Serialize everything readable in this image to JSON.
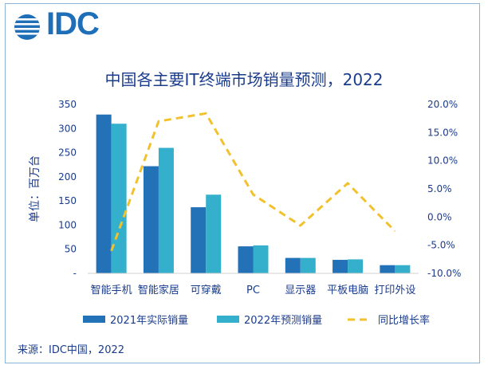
{
  "brand": {
    "logo_text": "IDC",
    "logo_icon": "globe-icon",
    "color": "#1f6fb8"
  },
  "title": "中国各主要IT终端市场销量预测，2022",
  "source": "来源：IDC中国，2022",
  "chart_data": {
    "type": "bar",
    "title": "中国各主要IT终端市场销量预测，2022",
    "ylabel": "单位：百万台",
    "categories": [
      "智能手机",
      "智能家居",
      "可穿戴",
      "PC",
      "显示器",
      "平板电脑",
      "打印外设"
    ],
    "series": [
      {
        "name": "2021年实际销量",
        "kind": "bar",
        "color": "#2372b8",
        "values": [
          329,
          222,
          137,
          56,
          32,
          28,
          17
        ]
      },
      {
        "name": "2022年预测销量",
        "kind": "bar",
        "color": "#35b0cc",
        "values": [
          310,
          260,
          163,
          58,
          32,
          29,
          17
        ]
      },
      {
        "name": "同比增长率",
        "kind": "line",
        "axis": "right",
        "color": "#f2c12e",
        "values": [
          -6.0,
          17.0,
          18.4,
          4.0,
          -1.5,
          6.0,
          -2.5
        ]
      }
    ],
    "y_left": {
      "min": 0,
      "max": 350,
      "step": 50,
      "ticks": [
        "-",
        "50",
        "100",
        "150",
        "200",
        "250",
        "300",
        "350"
      ]
    },
    "y_right": {
      "min": -10,
      "max": 20,
      "step": 5,
      "ticks": [
        "-10.0%",
        "-5.0%",
        "0.0%",
        "5.0%",
        "10.0%",
        "15.0%",
        "20.0%"
      ]
    },
    "legend": "bottom",
    "grid": false
  }
}
